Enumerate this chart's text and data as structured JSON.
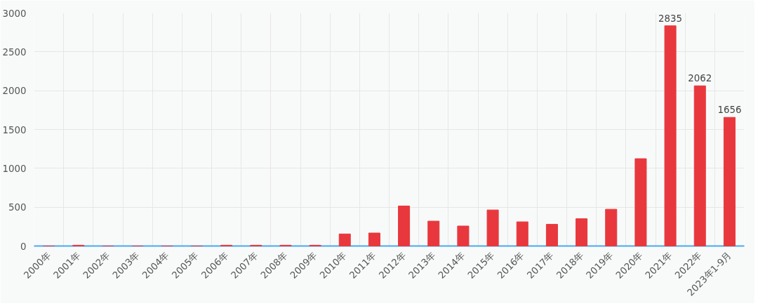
{
  "chart_data": {
    "type": "bar",
    "categories": [
      "2000年",
      "2001年",
      "2002年",
      "2003年",
      "2004年",
      "2005年",
      "2006年",
      "2007年",
      "2008年",
      "2009年",
      "2010年",
      "2011年",
      "2012年",
      "2013年",
      "2014年",
      "2015年",
      "2016年",
      "2017年",
      "2018年",
      "2019年",
      "2020年",
      "2021年",
      "2022年",
      "2023年1-9月"
    ],
    "values": [
      0,
      10,
      0,
      0,
      0,
      0,
      10,
      10,
      10,
      10,
      155,
      167,
      515,
      320,
      257,
      464,
      311,
      279,
      351,
      473,
      1124,
      2835,
      2062,
      1656
    ],
    "value_labels": [
      null,
      null,
      null,
      null,
      null,
      null,
      null,
      null,
      null,
      null,
      null,
      null,
      null,
      null,
      null,
      null,
      null,
      null,
      null,
      null,
      null,
      "2835",
      "2062",
      "1656"
    ],
    "color": "#e8383d",
    "ylim": [
      0,
      3000
    ],
    "yticks": [
      0,
      500,
      1000,
      1500,
      2000,
      2500,
      3000
    ],
    "grid": true
  }
}
